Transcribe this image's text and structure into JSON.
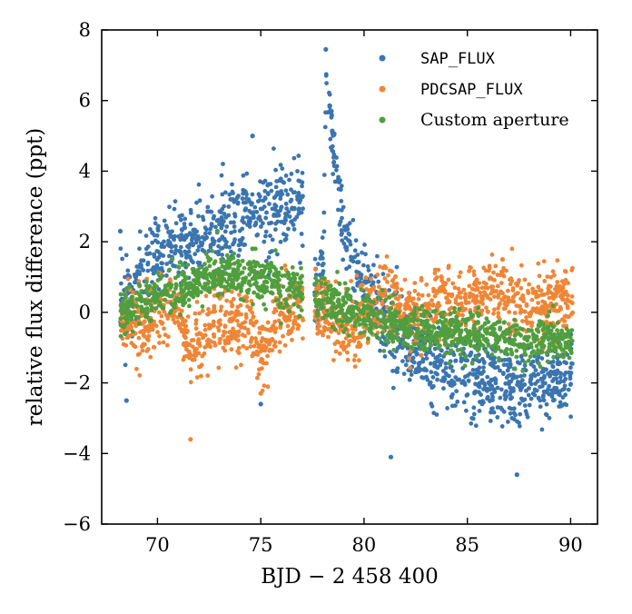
{
  "chart_data": {
    "type": "scatter",
    "title": "",
    "xlabel": "BJD − 2 458 400",
    "ylabel": "relative flux difference (ppt)",
    "xlim": [
      67.3,
      91.3
    ],
    "ylim": [
      -6,
      8
    ],
    "xticks": [
      70,
      75,
      80,
      85,
      90
    ],
    "xtick_labels": [
      "70",
      "75",
      "80",
      "85",
      "90"
    ],
    "yticks": [
      -6,
      -4,
      -2,
      0,
      2,
      4,
      6,
      8
    ],
    "ytick_labels": [
      "−6",
      "−4",
      "−2",
      "0",
      "2",
      "4",
      "6",
      "8"
    ],
    "legend_position": "top-right",
    "grid": false,
    "series": [
      {
        "name": "SAP_FLUX",
        "color": "#3b75af",
        "trend": [
          [
            68.2,
            0.3
          ],
          [
            68.8,
            0.6
          ],
          [
            69.5,
            1.4
          ],
          [
            70.5,
            1.8
          ],
          [
            71.5,
            2.0
          ],
          [
            72.5,
            2.3
          ],
          [
            73.5,
            2.5
          ],
          [
            74.5,
            2.7
          ],
          [
            75.5,
            2.8
          ],
          [
            76.5,
            3.1
          ],
          [
            77.0,
            3.3
          ],
          [
            77.15,
            0.6
          ],
          [
            77.7,
            0.5
          ],
          [
            78.05,
            1.5
          ],
          [
            78.15,
            6.6
          ],
          [
            78.3,
            5.8
          ],
          [
            78.6,
            4.3
          ],
          [
            79.0,
            2.5
          ],
          [
            79.6,
            1.2
          ],
          [
            80.2,
            0.6
          ],
          [
            81.0,
            -0.3
          ],
          [
            82.0,
            -0.9
          ],
          [
            83.0,
            -1.3
          ],
          [
            84.0,
            -1.6
          ],
          [
            85.0,
            -1.8
          ],
          [
            86.0,
            -2.0
          ],
          [
            87.0,
            -2.1
          ],
          [
            88.0,
            -2.0
          ],
          [
            89.0,
            -1.9
          ],
          [
            90.1,
            -1.8
          ]
        ],
        "extremes": [
          [
            78.15,
            7.45
          ],
          [
            74.6,
            5.0
          ],
          [
            68.2,
            2.3
          ],
          [
            87.4,
            -4.6
          ],
          [
            81.3,
            -4.1
          ],
          [
            75.0,
            -2.6
          ],
          [
            68.5,
            -2.5
          ]
        ]
      },
      {
        "name": "PDCSAP_FLUX",
        "color": "#ef8636",
        "trend": [
          [
            68.2,
            -0.1
          ],
          [
            69.0,
            -0.4
          ],
          [
            70.0,
            -0.2
          ],
          [
            71.0,
            0.1
          ],
          [
            71.6,
            -1.2
          ],
          [
            72.5,
            -0.4
          ],
          [
            73.5,
            -0.3
          ],
          [
            74.5,
            -0.4
          ],
          [
            75.0,
            -1.3
          ],
          [
            75.8,
            -0.2
          ],
          [
            77.0,
            0.2
          ],
          [
            77.15,
            0.2
          ],
          [
            78.0,
            0.1
          ],
          [
            79.0,
            -0.4
          ],
          [
            80.0,
            -0.3
          ],
          [
            81.0,
            0.6
          ],
          [
            82.0,
            -0.2
          ],
          [
            83.0,
            0.2
          ],
          [
            84.0,
            0.4
          ],
          [
            85.0,
            0.3
          ],
          [
            86.5,
            0.6
          ],
          [
            88.0,
            0.1
          ],
          [
            90.1,
            0.2
          ]
        ],
        "extremes": [
          [
            71.6,
            -3.6
          ],
          [
            75.0,
            -2.3
          ],
          [
            86.7,
            1.5
          ],
          [
            81.0,
            1.3
          ]
        ]
      },
      {
        "name": "Custom aperture",
        "color": "#519e3e",
        "trend": [
          [
            68.2,
            0.0
          ],
          [
            69.0,
            0.2
          ],
          [
            70.0,
            0.5
          ],
          [
            71.0,
            0.7
          ],
          [
            72.0,
            0.9
          ],
          [
            73.0,
            1.0
          ],
          [
            74.0,
            1.05
          ],
          [
            75.0,
            1.05
          ],
          [
            76.0,
            0.7
          ],
          [
            77.0,
            0.5
          ],
          [
            78.0,
            0.4
          ],
          [
            79.0,
            0.1
          ],
          [
            80.0,
            -0.1
          ],
          [
            81.0,
            -0.3
          ],
          [
            82.0,
            -0.4
          ],
          [
            83.0,
            -0.5
          ],
          [
            84.0,
            -0.55
          ],
          [
            85.0,
            -0.6
          ],
          [
            86.0,
            -0.65
          ],
          [
            87.0,
            -0.7
          ],
          [
            88.0,
            -0.75
          ],
          [
            90.1,
            -0.85
          ]
        ],
        "extremes": [
          [
            72.9,
            2.3
          ],
          [
            74.6,
            1.8
          ],
          [
            87.3,
            -1.6
          ]
        ]
      }
    ]
  }
}
